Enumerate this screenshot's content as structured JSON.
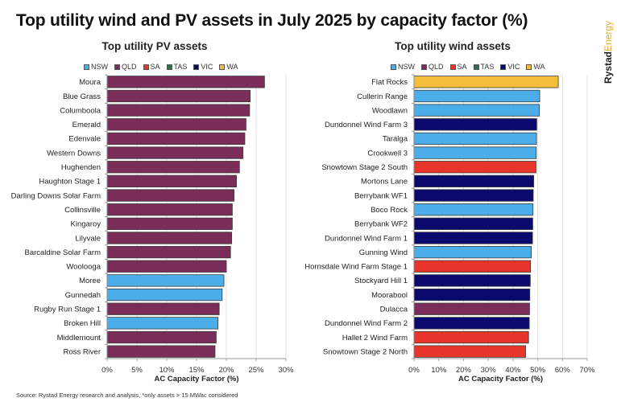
{
  "title": "Top utility wind and PV assets in July 2025 by capacity factor (%)",
  "footer": "Source: Rystad Energy research and analysis, *only assets > 15 MWac considered",
  "logo": {
    "part1": "Rystad",
    "part2": "Energy"
  },
  "colors": {
    "NSW": "#4baee8",
    "QLD": "#7b2d5a",
    "SA": "#e8352b",
    "TAS": "#2f6e4a",
    "VIC": "#0a0a6e",
    "WA": "#f4bd3a"
  },
  "legend": [
    {
      "label": "NSW",
      "key": "NSW"
    },
    {
      "label": "QLD",
      "key": "QLD"
    },
    {
      "label": "SA",
      "key": "SA"
    },
    {
      "label": "TAS",
      "key": "TAS"
    },
    {
      "label": "VIC",
      "key": "VIC"
    },
    {
      "label": "WA",
      "key": "WA"
    }
  ],
  "chart_data": [
    {
      "type": "bar",
      "orientation": "horizontal",
      "title": "Top utility PV assets",
      "xlabel": "AC Capacity Factor (%)",
      "ylabel": "",
      "xlim": [
        0,
        30
      ],
      "xticks": [
        0,
        5,
        10,
        15,
        20,
        25,
        30
      ],
      "xtick_labels": [
        "0%",
        "5%",
        "10%",
        "15%",
        "20%",
        "25%",
        "30%"
      ],
      "grid": "vertical",
      "legend_position": "top",
      "categories": [
        "Moura",
        "Blue Grass",
        "Columboola",
        "Emerald",
        "Edenvale",
        "Western Downs",
        "Hughenden",
        "Haughton Stage 1",
        "Darling Downs Solar Farm",
        "Collinsville",
        "Kingaroy",
        "Lilyvale",
        "Barcaldine Solar Farm",
        "Woolooga",
        "Moree",
        "Gunnedah",
        "Rugby Run Stage 1",
        "Broken Hill",
        "Middlemount",
        "Ross River"
      ],
      "values": [
        26.4,
        24.0,
        23.9,
        23.3,
        23.1,
        22.8,
        22.2,
        21.7,
        21.3,
        21.0,
        21.0,
        20.9,
        20.7,
        20.0,
        19.6,
        19.3,
        18.8,
        18.6,
        18.3,
        18.1
      ],
      "states": [
        "QLD",
        "QLD",
        "QLD",
        "QLD",
        "QLD",
        "QLD",
        "QLD",
        "QLD",
        "QLD",
        "QLD",
        "QLD",
        "QLD",
        "QLD",
        "QLD",
        "NSW",
        "NSW",
        "QLD",
        "NSW",
        "QLD",
        "QLD"
      ]
    },
    {
      "type": "bar",
      "orientation": "horizontal",
      "title": "Top utility wind assets",
      "xlabel": "AC Capacity Factor (%)",
      "ylabel": "",
      "xlim": [
        0,
        70
      ],
      "xticks": [
        0,
        10,
        20,
        30,
        40,
        50,
        60,
        70
      ],
      "xtick_labels": [
        "0%",
        "10%",
        "20%",
        "30%",
        "40%",
        "50%",
        "60%",
        "70%"
      ],
      "grid": "vertical",
      "legend_position": "top",
      "categories": [
        "Flat Rocks",
        "Cullerin Range",
        "Woodlawn",
        "Dundonnel Wind Farm 3",
        "Taralga",
        "Crookwell 3",
        "Snowtown Stage 2 South",
        "Mortons Lane",
        "Berrybank WF1",
        "Boco Rock",
        "Berrybank WF2",
        "Dundonnel Wind Farm 1",
        "Gunning Wind",
        "Hornsdale Wind Farm Stage 1",
        "Stockyard Hill 1",
        "Moorabool",
        "Dulacca",
        "Dundonnel Wind Farm 2",
        "Hallet 2 Wind Farm",
        "Snowtown Stage 2 North"
      ],
      "values": [
        58.3,
        50.8,
        50.7,
        49.6,
        49.5,
        49.4,
        49.3,
        48.4,
        48.2,
        48.1,
        48.0,
        47.9,
        47.4,
        47.1,
        47.0,
        46.8,
        46.7,
        46.6,
        46.3,
        45.1
      ],
      "states": [
        "WA",
        "NSW",
        "NSW",
        "VIC",
        "NSW",
        "NSW",
        "SA",
        "VIC",
        "VIC",
        "NSW",
        "VIC",
        "VIC",
        "NSW",
        "SA",
        "VIC",
        "VIC",
        "QLD",
        "VIC",
        "SA",
        "SA"
      ]
    }
  ]
}
